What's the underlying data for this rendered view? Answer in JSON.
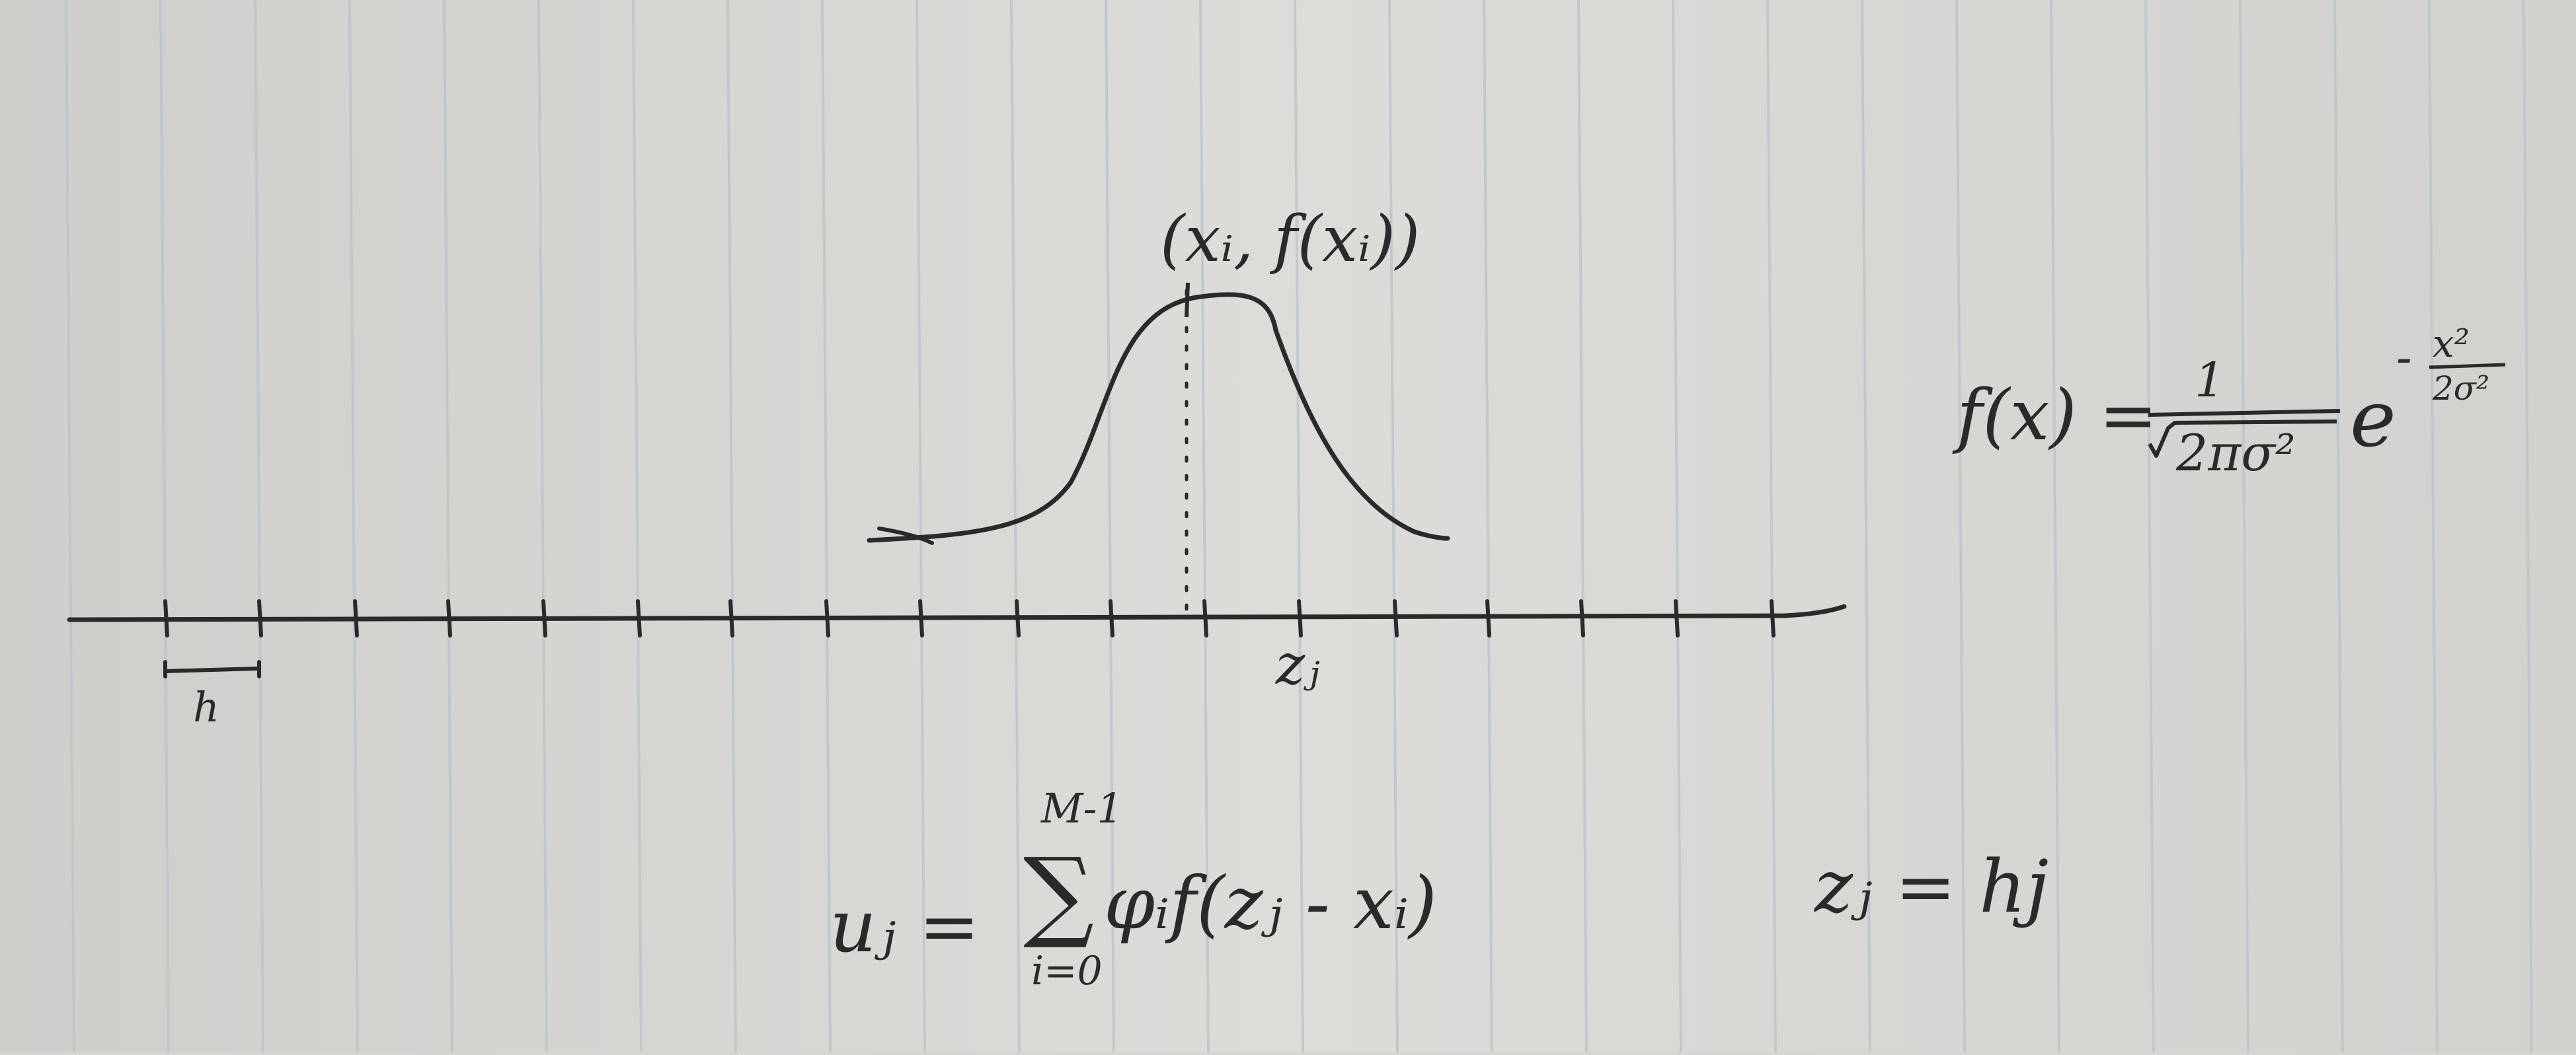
{
  "colors": {
    "paper": "#d9d8d5",
    "paper_shade": "#c9c8c4",
    "rule_lines": "#b5c0cc",
    "ink": "#2a2a2c"
  },
  "labels": {
    "peak_point": "(xᵢ, f(xᵢ))",
    "grid_point": "zⱼ",
    "spacing": "h"
  },
  "gaussian": {
    "lhs": "f(x) =",
    "numerator": "1",
    "denominator": "2πσ²",
    "base": "e",
    "exponent_sign": "-",
    "exponent_numerator": "x²",
    "exponent_denominator": "2σ²"
  },
  "sum_formula": {
    "lhs": "uⱼ =",
    "upper_limit": "M-1",
    "lower_limit": "i=0",
    "body": "φᵢf(zⱼ - xᵢ)"
  },
  "grid_formula": "zⱼ = hj"
}
